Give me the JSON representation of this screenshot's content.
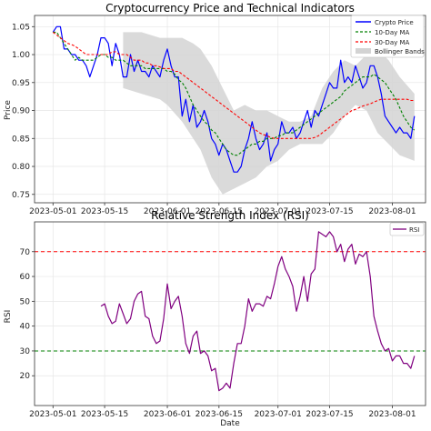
{
  "chart_data": [
    {
      "type": "line",
      "title": "Cryptocurrency Price and Technical Indicators",
      "xlabel": "",
      "ylabel": "Price",
      "xlim": [
        "2023-04-26",
        "2023-08-10"
      ],
      "ylim": [
        0.735,
        1.07
      ],
      "yticks": [
        0.75,
        0.8,
        0.85,
        0.9,
        0.95,
        1.0,
        1.05
      ],
      "ytick_labels": [
        "0.75",
        "0.80",
        "0.85",
        "0.90",
        "0.95",
        "1.00",
        "1.05"
      ],
      "xticks": [
        "2023-05-01",
        "2023-05-15",
        "2023-06-01",
        "2023-06-15",
        "2023-07-01",
        "2023-07-15",
        "2023-08-01"
      ],
      "grid": true,
      "legend": "upper-right",
      "legend_entries": [
        "Crypto Price",
        "10-Day MA",
        "30-Day MA",
        "Bollinger Bands"
      ],
      "x": [
        "2023-05-01",
        "2023-05-02",
        "2023-05-03",
        "2023-05-04",
        "2023-05-05",
        "2023-05-06",
        "2023-05-07",
        "2023-05-08",
        "2023-05-09",
        "2023-05-10",
        "2023-05-11",
        "2023-05-12",
        "2023-05-13",
        "2023-05-14",
        "2023-05-15",
        "2023-05-16",
        "2023-05-17",
        "2023-05-18",
        "2023-05-19",
        "2023-05-20",
        "2023-05-21",
        "2023-05-22",
        "2023-05-23",
        "2023-05-24",
        "2023-05-25",
        "2023-05-26",
        "2023-05-27",
        "2023-05-28",
        "2023-05-29",
        "2023-05-30",
        "2023-05-31",
        "2023-06-01",
        "2023-06-02",
        "2023-06-03",
        "2023-06-04",
        "2023-06-05",
        "2023-06-06",
        "2023-06-07",
        "2023-06-08",
        "2023-06-09",
        "2023-06-10",
        "2023-06-11",
        "2023-06-12",
        "2023-06-13",
        "2023-06-14",
        "2023-06-15",
        "2023-06-16",
        "2023-06-17",
        "2023-06-18",
        "2023-06-19",
        "2023-06-20",
        "2023-06-21",
        "2023-06-22",
        "2023-06-23",
        "2023-06-24",
        "2023-06-25",
        "2023-06-26",
        "2023-06-27",
        "2023-06-28",
        "2023-06-29",
        "2023-06-30",
        "2023-07-01",
        "2023-07-02",
        "2023-07-03",
        "2023-07-04",
        "2023-07-05",
        "2023-07-06",
        "2023-07-07",
        "2023-07-08",
        "2023-07-09",
        "2023-07-10",
        "2023-07-11",
        "2023-07-12",
        "2023-07-13",
        "2023-07-14",
        "2023-07-15",
        "2023-07-16",
        "2023-07-17",
        "2023-07-18",
        "2023-07-19",
        "2023-07-20",
        "2023-07-21",
        "2023-07-22",
        "2023-07-23",
        "2023-07-24",
        "2023-07-25",
        "2023-07-26",
        "2023-07-27",
        "2023-07-28",
        "2023-07-29",
        "2023-07-30",
        "2023-07-31",
        "2023-08-01",
        "2023-08-02",
        "2023-08-03",
        "2023-08-04",
        "2023-08-05",
        "2023-08-06",
        "2023-08-07"
      ],
      "series": [
        {
          "name": "Crypto Price",
          "color": "#0000ff",
          "style": "solid",
          "values": [
            1.04,
            1.05,
            1.05,
            1.01,
            1.01,
            1.0,
            1.0,
            0.99,
            0.99,
            0.98,
            0.96,
            0.98,
            1.0,
            1.03,
            1.03,
            1.02,
            0.98,
            1.02,
            1.0,
            0.96,
            0.96,
            1.0,
            0.97,
            0.99,
            0.97,
            0.97,
            0.96,
            0.98,
            0.97,
            0.96,
            0.99,
            1.01,
            0.98,
            0.96,
            0.96,
            0.89,
            0.92,
            0.88,
            0.91,
            0.87,
            0.88,
            0.9,
            0.88,
            0.85,
            0.84,
            0.82,
            0.84,
            0.83,
            0.81,
            0.79,
            0.79,
            0.8,
            0.83,
            0.85,
            0.88,
            0.85,
            0.83,
            0.84,
            0.86,
            0.81,
            0.83,
            0.84,
            0.88,
            0.86,
            0.86,
            0.87,
            0.85,
            0.86,
            0.88,
            0.9,
            0.87,
            0.9,
            0.89,
            0.91,
            0.93,
            0.95,
            0.94,
            0.94,
            0.99,
            0.95,
            0.96,
            0.95,
            0.98,
            0.96,
            0.94,
            0.95,
            0.98,
            0.98,
            0.96,
            0.93,
            0.89,
            0.88,
            0.87,
            0.86,
            0.87,
            0.86,
            0.86,
            0.85,
            0.89
          ]
        },
        {
          "name": "10-Day MA",
          "color": "#008000",
          "style": "dashed",
          "values": [
            1.04,
            1.04,
            1.03,
            1.02,
            1.01,
            1.0,
            0.99,
            0.995,
            0.99,
            0.99,
            0.99,
            0.99,
            0.995,
            1.0,
            1.0,
            0.995,
            0.995,
            0.99,
            0.99,
            0.99,
            0.985,
            0.98,
            0.98,
            0.98,
            0.98,
            0.975,
            0.975,
            0.975,
            0.975,
            0.975,
            0.975,
            0.97,
            0.97,
            0.965,
            0.955,
            0.95,
            0.94,
            0.925,
            0.91,
            0.9,
            0.89,
            0.88,
            0.875,
            0.865,
            0.86,
            0.85,
            0.84,
            0.83,
            0.825,
            0.82,
            0.82,
            0.825,
            0.83,
            0.835,
            0.84,
            0.84,
            0.845,
            0.845,
            0.85,
            0.85,
            0.85,
            0.855,
            0.855,
            0.86,
            0.86,
            0.86,
            0.865,
            0.87,
            0.875,
            0.88,
            0.885,
            0.89,
            0.895,
            0.9,
            0.905,
            0.91,
            0.915,
            0.92,
            0.925,
            0.935,
            0.94,
            0.945,
            0.95,
            0.955,
            0.96,
            0.96,
            0.96,
            0.965,
            0.96,
            0.955,
            0.95,
            0.94,
            0.93,
            0.92,
            0.905,
            0.89,
            0.88,
            0.87,
            0.865
          ]
        },
        {
          "name": "30-Day MA",
          "color": "#ff0000",
          "style": "dashed",
          "values": [
            1.04,
            1.035,
            1.03,
            1.025,
            1.02,
            1.018,
            1.015,
            1.01,
            1.005,
            1.0,
            1.0,
            1.0,
            1.0,
            1.0,
            1.0,
            1.0,
            1.005,
            1.005,
            1.0,
            1.0,
            1.0,
            0.995,
            0.99,
            0.99,
            0.99,
            0.985,
            0.985,
            0.98,
            0.98,
            0.978,
            0.975,
            0.975,
            0.975,
            0.97,
            0.97,
            0.965,
            0.96,
            0.955,
            0.95,
            0.945,
            0.94,
            0.935,
            0.93,
            0.925,
            0.92,
            0.915,
            0.91,
            0.905,
            0.9,
            0.895,
            0.89,
            0.885,
            0.88,
            0.875,
            0.87,
            0.865,
            0.86,
            0.857,
            0.855,
            0.852,
            0.85,
            0.85,
            0.85,
            0.85,
            0.85,
            0.85,
            0.85,
            0.85,
            0.85,
            0.85,
            0.85,
            0.852,
            0.855,
            0.86,
            0.865,
            0.87,
            0.875,
            0.88,
            0.885,
            0.89,
            0.895,
            0.9,
            0.902,
            0.905,
            0.908,
            0.91,
            0.912,
            0.915,
            0.918,
            0.92,
            0.92,
            0.92,
            0.92,
            0.92,
            0.92,
            0.92,
            0.92,
            0.918,
            0.918
          ]
        }
      ],
      "bands": {
        "name": "Bollinger Bands",
        "color": "#d3d3d3",
        "x": [
          "2023-05-20",
          "2023-05-25",
          "2023-05-30",
          "2023-06-01",
          "2023-06-05",
          "2023-06-08",
          "2023-06-10",
          "2023-06-13",
          "2023-06-16",
          "2023-06-19",
          "2023-06-22",
          "2023-06-25",
          "2023-06-28",
          "2023-07-01",
          "2023-07-04",
          "2023-07-07",
          "2023-07-10",
          "2023-07-13",
          "2023-07-16",
          "2023-07-19",
          "2023-07-22",
          "2023-07-25",
          "2023-07-28",
          "2023-07-31",
          "2023-08-03",
          "2023-08-07"
        ],
        "upper": [
          1.04,
          1.04,
          1.03,
          1.03,
          1.03,
          1.02,
          1.01,
          0.98,
          0.94,
          0.9,
          0.91,
          0.9,
          0.9,
          0.89,
          0.88,
          0.88,
          0.89,
          0.94,
          0.97,
          0.99,
          0.98,
          1.0,
          1.01,
          0.99,
          0.96,
          0.93
        ],
        "lower": [
          0.94,
          0.93,
          0.92,
          0.91,
          0.88,
          0.85,
          0.83,
          0.78,
          0.75,
          0.76,
          0.77,
          0.78,
          0.8,
          0.81,
          0.83,
          0.84,
          0.84,
          0.84,
          0.86,
          0.89,
          0.91,
          0.9,
          0.86,
          0.84,
          0.82,
          0.81
        ]
      }
    },
    {
      "type": "line",
      "title": "Relative Strength Index (RSI)",
      "xlabel": "Date",
      "ylabel": "RSI",
      "xlim": [
        "2023-04-26",
        "2023-08-10"
      ],
      "ylim": [
        8,
        82
      ],
      "yticks": [
        20,
        30,
        40,
        50,
        60,
        70
      ],
      "ytick_labels": [
        "20",
        "30",
        "40",
        "50",
        "60",
        "70"
      ],
      "xticks": [
        "2023-05-01",
        "2023-05-15",
        "2023-06-01",
        "2023-06-15",
        "2023-07-01",
        "2023-07-15",
        "2023-08-01"
      ],
      "grid": true,
      "legend": "upper-right",
      "legend_entries": [
        "RSI"
      ],
      "hlines": [
        {
          "y": 70,
          "color": "#ff0000",
          "style": "dashed"
        },
        {
          "y": 30,
          "color": "#008000",
          "style": "dashed"
        }
      ],
      "x": [
        "2023-05-14",
        "2023-05-15",
        "2023-05-16",
        "2023-05-17",
        "2023-05-18",
        "2023-05-19",
        "2023-05-20",
        "2023-05-21",
        "2023-05-22",
        "2023-05-23",
        "2023-05-24",
        "2023-05-25",
        "2023-05-26",
        "2023-05-27",
        "2023-05-28",
        "2023-05-29",
        "2023-05-30",
        "2023-05-31",
        "2023-06-01",
        "2023-06-02",
        "2023-06-03",
        "2023-06-04",
        "2023-06-05",
        "2023-06-06",
        "2023-06-07",
        "2023-06-08",
        "2023-06-09",
        "2023-06-10",
        "2023-06-11",
        "2023-06-12",
        "2023-06-13",
        "2023-06-14",
        "2023-06-15",
        "2023-06-16",
        "2023-06-17",
        "2023-06-18",
        "2023-06-19",
        "2023-06-20",
        "2023-06-21",
        "2023-06-22",
        "2023-06-23",
        "2023-06-24",
        "2023-06-25",
        "2023-06-26",
        "2023-06-27",
        "2023-06-28",
        "2023-06-29",
        "2023-06-30",
        "2023-07-01",
        "2023-07-02",
        "2023-07-03",
        "2023-07-04",
        "2023-07-05",
        "2023-07-06",
        "2023-07-07",
        "2023-07-08",
        "2023-07-09",
        "2023-07-10",
        "2023-07-11",
        "2023-07-12",
        "2023-07-13",
        "2023-07-14",
        "2023-07-15",
        "2023-07-16",
        "2023-07-17",
        "2023-07-18",
        "2023-07-19",
        "2023-07-20",
        "2023-07-21",
        "2023-07-22",
        "2023-07-23",
        "2023-07-24",
        "2023-07-25",
        "2023-07-26",
        "2023-07-27",
        "2023-07-28",
        "2023-07-29",
        "2023-07-30",
        "2023-07-31",
        "2023-08-01",
        "2023-08-02",
        "2023-08-03",
        "2023-08-04",
        "2023-08-05",
        "2023-08-06",
        "2023-08-07"
      ],
      "series": [
        {
          "name": "RSI",
          "color": "#800080",
          "style": "solid",
          "values": [
            48,
            49,
            44,
            41,
            42,
            49,
            45,
            41,
            43,
            50,
            53,
            54,
            44,
            43,
            36,
            33,
            34,
            43,
            57,
            47,
            50,
            52,
            44,
            33,
            29,
            36,
            38,
            29,
            30,
            28,
            22,
            23,
            14,
            15,
            17,
            15,
            25,
            33,
            33,
            40,
            51,
            46,
            49,
            49,
            48,
            52,
            51,
            57,
            64,
            68,
            63,
            60,
            56,
            46,
            52,
            60,
            50,
            61,
            63,
            78,
            77,
            76,
            78,
            76,
            70,
            73,
            66,
            71,
            73,
            65,
            69,
            68,
            70,
            60,
            44,
            38,
            33,
            30,
            31,
            26,
            28,
            28,
            25,
            25,
            23,
            28
          ]
        }
      ]
    }
  ]
}
